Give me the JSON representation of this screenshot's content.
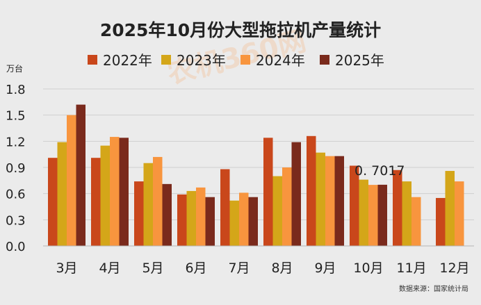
{
  "chart_data": {
    "type": "bar",
    "title": "2025年10月份大型拖拉机产量统计",
    "ylabel": "万台",
    "ylim": [
      0,
      1.8
    ],
    "yticks": [
      "0.0",
      "0.3",
      "0.6",
      "0.9",
      "1.2",
      "1.5",
      "1.8"
    ],
    "grid": true,
    "legend_position": "top",
    "categories": [
      "3月",
      "4月",
      "5月",
      "6月",
      "7月",
      "8月",
      "9月",
      "10月",
      "11月",
      "12月"
    ],
    "series": [
      {
        "name": "2022年",
        "color": "#c9471b",
        "values": [
          1.01,
          1.01,
          0.74,
          0.59,
          0.88,
          1.24,
          1.26,
          0.92,
          0.87,
          0.55
        ]
      },
      {
        "name": "2023年",
        "color": "#d4a619",
        "values": [
          1.19,
          1.15,
          0.95,
          0.63,
          0.52,
          0.8,
          1.07,
          0.76,
          0.74,
          0.86
        ]
      },
      {
        "name": "2024年",
        "color": "#f8953e",
        "values": [
          1.5,
          1.25,
          1.02,
          0.67,
          0.61,
          0.9,
          1.03,
          0.7,
          0.56,
          0.74
        ]
      },
      {
        "name": "2025年",
        "color": "#7a2a1c",
        "values": [
          1.62,
          1.24,
          0.71,
          0.56,
          0.56,
          1.19,
          1.03,
          0.7017,
          null,
          null
        ]
      }
    ],
    "annotation": "0. 7017",
    "source": "数据来源：国家统计局"
  },
  "watermark": "农机360网"
}
